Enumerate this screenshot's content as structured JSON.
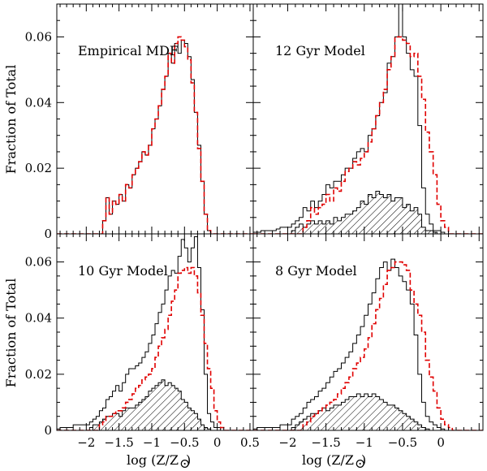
{
  "chart_data": {
    "type": "histogram-grid",
    "shared": {
      "xlabel": "log (Z/Z",
      "xlabel_sub": "⊙",
      "xlabel_close": ")",
      "ylabel": "Fraction of Total",
      "xlim": [
        -2.45,
        0.55
      ],
      "ylim": [
        0,
        0.07
      ],
      "xticks": [
        -2,
        -1.5,
        -1,
        -0.5,
        0,
        0.5
      ],
      "xtick_labels": [
        "−2",
        "−1.5",
        "−1",
        "−0.5",
        "0",
        "0.5"
      ],
      "yticks": [
        0,
        0.02,
        0.04,
        0.06
      ],
      "ytick_labels": [
        "0",
        "0.02",
        "0.04",
        "0.06"
      ],
      "bin_width": 0.05,
      "bin_start": -2.45
    },
    "panels": [
      {
        "label": "Empirical MDF",
        "series": [
          {
            "name": "empirical",
            "style": "black-solid",
            "values": [
              0,
              0,
              0,
              0,
              0,
              0,
              0,
              0,
              0,
              0,
              0,
              0,
              0,
              0,
              0.004,
              0.011,
              0.006,
              0.01,
              0.009,
              0.012,
              0.01,
              0.015,
              0.014,
              0.018,
              0.02,
              0.022,
              0.025,
              0.024,
              0.027,
              0.032,
              0.035,
              0.039,
              0.044,
              0.048,
              0.055,
              0.052,
              0.058,
              0.055,
              0.059,
              0.058,
              0.054,
              0.047,
              0.037,
              0.027,
              0.016,
              0.006,
              0.001,
              0,
              0,
              0,
              0,
              0,
              0,
              0,
              0,
              0,
              0,
              0,
              0,
              0
            ]
          },
          {
            "name": "model",
            "style": "red-dashed",
            "values": [
              0,
              0,
              0,
              0,
              0,
              0,
              0,
              0,
              0,
              0,
              0,
              0,
              0,
              0,
              0.004,
              0.011,
              0.006,
              0.01,
              0.009,
              0.012,
              0.01,
              0.015,
              0.014,
              0.018,
              0.02,
              0.022,
              0.025,
              0.024,
              0.027,
              0.032,
              0.035,
              0.039,
              0.044,
              0.048,
              0.055,
              0.052,
              0.058,
              0.06,
              0.059,
              0.057,
              0.053,
              0.046,
              0.037,
              0.026,
              0.016,
              0.006,
              0.001,
              0,
              0,
              0,
              0,
              0,
              0,
              0,
              0,
              0,
              0,
              0,
              0,
              0
            ]
          }
        ]
      },
      {
        "label": "12 Gyr Model",
        "series": [
          {
            "name": "model-total",
            "style": "black-solid",
            "values": [
              0.0005,
              0.0005,
              0.001,
              0.001,
              0.001,
              0.001,
              0.0015,
              0.002,
              0.002,
              0.002,
              0.003,
              0.004,
              0.005,
              0.008,
              0.007,
              0.01,
              0.008,
              0.01,
              0.012,
              0.015,
              0.014,
              0.016,
              0.016,
              0.018,
              0.02,
              0.02,
              0.023,
              0.025,
              0.026,
              0.025,
              0.03,
              0.032,
              0.036,
              0.04,
              0.043,
              0.052,
              0.054,
              0.06,
              0.072,
              0.06,
              0.055,
              0.05,
              0.048,
              0.033,
              0.014,
              0.006,
              0.003,
              0.001,
              0.001,
              0.0005,
              0,
              0,
              0,
              0,
              0,
              0,
              0,
              0,
              0,
              0
            ]
          },
          {
            "name": "empirical",
            "style": "red-dashed",
            "values": [
              0,
              0,
              0,
              0,
              0,
              0,
              0,
              0,
              0,
              0,
              0,
              0,
              0,
              0.002,
              0.004,
              0.008,
              0.006,
              0.008,
              0.009,
              0.012,
              0.01,
              0.014,
              0.013,
              0.016,
              0.019,
              0.02,
              0.022,
              0.021,
              0.023,
              0.025,
              0.028,
              0.032,
              0.036,
              0.04,
              0.044,
              0.05,
              0.054,
              0.06,
              0.06,
              0.059,
              0.058,
              0.054,
              0.055,
              0.048,
              0.041,
              0.031,
              0.025,
              0.018,
              0.009,
              0.004,
              0.002,
              0,
              0,
              0,
              0,
              0,
              0,
              0,
              0,
              0
            ]
          },
          {
            "name": "metal-poor-component",
            "style": "hatched",
            "values": [
              0,
              0,
              0,
              0,
              0,
              0,
              0,
              0,
              0,
              0,
              0.001,
              0.002,
              0.003,
              0.002,
              0.003,
              0.004,
              0.003,
              0.004,
              0.003,
              0.004,
              0.003,
              0.005,
              0.004,
              0.005,
              0.006,
              0.006,
              0.007,
              0.008,
              0.01,
              0.009,
              0.012,
              0.011,
              0.013,
              0.012,
              0.011,
              0.012,
              0.01,
              0.011,
              0.011,
              0.008,
              0.009,
              0.007,
              0.008,
              0.006,
              0.002,
              0.001,
              0.001,
              0.0005,
              0,
              0,
              0,
              0,
              0,
              0,
              0,
              0,
              0,
              0,
              0,
              0
            ]
          }
        ]
      },
      {
        "label": "10 Gyr Model",
        "series": [
          {
            "name": "model-total",
            "style": "black-solid",
            "values": [
              0.0005,
              0.001,
              0.001,
              0.001,
              0.001,
              0.002,
              0.002,
              0.002,
              0.002,
              0.002,
              0.003,
              0.004,
              0.005,
              0.007,
              0.008,
              0.011,
              0.012,
              0.014,
              0.016,
              0.014,
              0.017,
              0.02,
              0.022,
              0.022,
              0.023,
              0.024,
              0.026,
              0.028,
              0.031,
              0.034,
              0.038,
              0.042,
              0.045,
              0.05,
              0.055,
              0.057,
              0.056,
              0.062,
              0.068,
              0.065,
              0.06,
              0.065,
              0.069,
              0.058,
              0.043,
              0.02,
              0.006,
              0.003,
              0.001,
              0.001,
              0,
              0,
              0,
              0,
              0,
              0,
              0,
              0,
              0,
              0
            ]
          },
          {
            "name": "empirical",
            "style": "red-dashed",
            "values": [
              0,
              0,
              0,
              0,
              0,
              0,
              0,
              0,
              0,
              0,
              0,
              0,
              0,
              0.002,
              0.003,
              0.005,
              0.005,
              0.006,
              0.007,
              0.007,
              0.008,
              0.01,
              0.011,
              0.013,
              0.015,
              0.016,
              0.018,
              0.019,
              0.02,
              0.022,
              0.026,
              0.03,
              0.033,
              0.036,
              0.041,
              0.046,
              0.05,
              0.056,
              0.057,
              0.058,
              0.056,
              0.058,
              0.055,
              0.049,
              0.041,
              0.031,
              0.022,
              0.015,
              0.007,
              0.003,
              0.001,
              0,
              0,
              0,
              0,
              0,
              0,
              0,
              0,
              0
            ]
          },
          {
            "name": "metal-poor-component",
            "style": "hatched",
            "values": [
              0,
              0,
              0,
              0,
              0,
              0,
              0,
              0,
              0,
              0,
              0.001,
              0.002,
              0.002,
              0.003,
              0.004,
              0.005,
              0.005,
              0.006,
              0.006,
              0.005,
              0.007,
              0.008,
              0.008,
              0.008,
              0.009,
              0.01,
              0.011,
              0.012,
              0.014,
              0.015,
              0.016,
              0.017,
              0.018,
              0.016,
              0.017,
              0.016,
              0.015,
              0.014,
              0.011,
              0.01,
              0.008,
              0.007,
              0.006,
              0.004,
              0.002,
              0.001,
              0.0005,
              0,
              0,
              0,
              0,
              0,
              0,
              0,
              0,
              0,
              0,
              0,
              0,
              0
            ]
          }
        ]
      },
      {
        "label": "8 Gyr Model",
        "series": [
          {
            "name": "model-total",
            "style": "black-solid",
            "values": [
              0.0005,
              0.001,
              0.001,
              0.001,
              0.001,
              0.001,
              0.001,
              0.002,
              0.002,
              0.002,
              0.004,
              0.005,
              0.006,
              0.008,
              0.01,
              0.011,
              0.012,
              0.014,
              0.015,
              0.017,
              0.019,
              0.021,
              0.022,
              0.024,
              0.026,
              0.028,
              0.031,
              0.034,
              0.037,
              0.041,
              0.045,
              0.049,
              0.054,
              0.058,
              0.06,
              0.057,
              0.061,
              0.058,
              0.055,
              0.053,
              0.05,
              0.045,
              0.034,
              0.02,
              0.01,
              0.005,
              0.003,
              0.002,
              0.001,
              0.0005,
              0,
              0,
              0,
              0,
              0,
              0,
              0,
              0,
              0,
              0
            ]
          },
          {
            "name": "empirical",
            "style": "red-dashed",
            "values": [
              0,
              0,
              0,
              0,
              0,
              0,
              0,
              0,
              0,
              0,
              0,
              0,
              0,
              0.002,
              0.003,
              0.005,
              0.006,
              0.007,
              0.008,
              0.009,
              0.01,
              0.011,
              0.013,
              0.015,
              0.017,
              0.019,
              0.022,
              0.024,
              0.026,
              0.029,
              0.033,
              0.038,
              0.043,
              0.047,
              0.052,
              0.057,
              0.058,
              0.06,
              0.06,
              0.059,
              0.057,
              0.05,
              0.045,
              0.041,
              0.035,
              0.025,
              0.019,
              0.014,
              0.008,
              0.004,
              0.002,
              0.001,
              0,
              0,
              0,
              0,
              0,
              0,
              0,
              0
            ]
          },
          {
            "name": "metal-poor-component",
            "style": "hatched",
            "values": [
              0,
              0,
              0,
              0,
              0,
              0,
              0,
              0,
              0,
              0,
              0.001,
              0.002,
              0.003,
              0.004,
              0.005,
              0.006,
              0.006,
              0.007,
              0.008,
              0.007,
              0.008,
              0.009,
              0.009,
              0.01,
              0.011,
              0.012,
              0.012,
              0.013,
              0.012,
              0.013,
              0.012,
              0.013,
              0.012,
              0.011,
              0.01,
              0.009,
              0.009,
              0.008,
              0.007,
              0.006,
              0.005,
              0.004,
              0.003,
              0.002,
              0.001,
              0.0005,
              0,
              0,
              0,
              0,
              0,
              0,
              0,
              0,
              0,
              0,
              0,
              0,
              0,
              0
            ]
          }
        ]
      }
    ],
    "colors": {
      "solid": "#000000",
      "dashed": "#e00000",
      "hatch": "#000000"
    }
  }
}
